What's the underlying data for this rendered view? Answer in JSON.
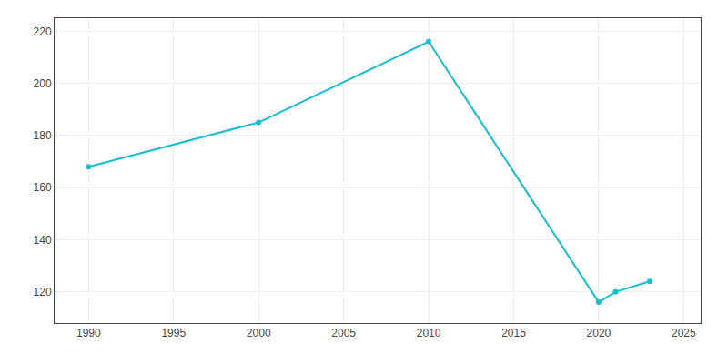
{
  "chart_data": {
    "type": "line",
    "x": [
      1990,
      2000,
      2010,
      2020,
      2021,
      2023
    ],
    "values": [
      168,
      185,
      216,
      116,
      120,
      124
    ],
    "color": "#17becf",
    "marker": "circle",
    "xlim": [
      1988,
      2026
    ],
    "ylim": [
      108,
      225
    ],
    "xticks": [
      1990,
      1995,
      2000,
      2005,
      2010,
      2015,
      2020,
      2025
    ],
    "yticks": [
      120,
      140,
      160,
      180,
      200,
      220
    ],
    "grid": true
  }
}
